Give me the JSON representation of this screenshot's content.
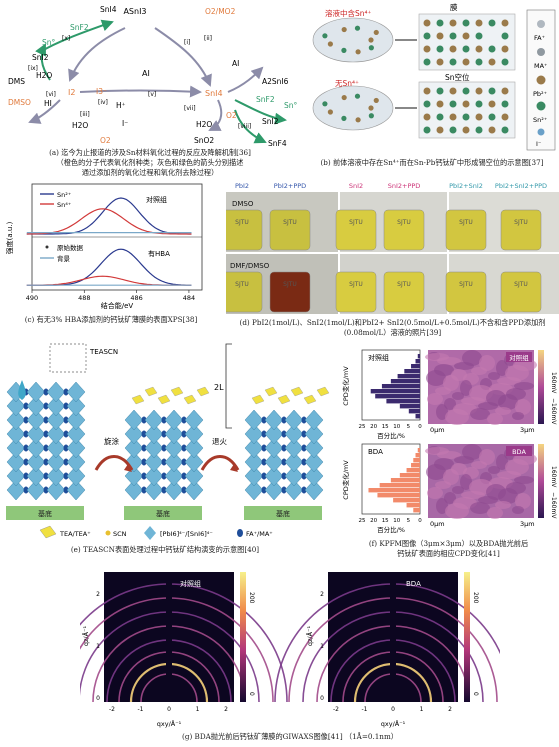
{
  "panel_a": {
    "nodes": {
      "asni3": "ASnI3",
      "sni4_top": "SnI4",
      "snf2_top": "SnF2",
      "sn0_left": "Sn°",
      "sni2_left": "SnI2",
      "dms": "DMS",
      "h2o_left": "H2O",
      "dmso": "DMSO",
      "hi": "HI",
      "i2": "I2",
      "i3": "I3⁻",
      "hplus": "H⁺",
      "iminus": "I⁻",
      "h2o_bottom": "H2O",
      "o2_bottom": "O2",
      "ai": "AI",
      "o2mo2": "O2/MO2",
      "sni4_center": "SnI4",
      "ai_right": "AI",
      "a2sni6": "A2SnI6",
      "snf2_right": "SnF2",
      "sn0_right": "Sn°",
      "sni2_right": "SnI2",
      "sno2": "SnO2",
      "h2o_center": "H2O",
      "o2_right": "O2",
      "snf4": "SnF4"
    },
    "step_labels": [
      "[i]",
      "[ii]",
      "[iii]",
      "[iv]",
      "[v]",
      "[vi]",
      "[vii]",
      "[viii]",
      "[ix]",
      "[x]"
    ],
    "caption_line1": "(a) 迄今为止报道的涉及Sn材料氧化过程的反应及降解机制[36]",
    "caption_line2": "（橙色的分子代表氧化剂种类；灰色和绿色的箭头分别描述",
    "caption_line3": "通过添加剂的氧化过程和氧化剂去除过程）"
  },
  "panel_b": {
    "label_with_sn": "溶液中含Sn⁴⁺",
    "label_without_sn": "无Sn⁴⁺",
    "label_film": "膜",
    "label_vacancy": "Sn空位",
    "legend": [
      "FA⁺",
      "MA⁺",
      "Pb²⁺",
      "Sn²⁺",
      "I⁻"
    ],
    "caption": "(b) 前体溶液中存在Sn⁴⁺而在Sn-Pb钙钛矿中形成锡空位的示意图[37]"
  },
  "panel_c": {
    "legend_top": [
      "Sn²⁺",
      "Sn⁴⁺"
    ],
    "label_control": "对照组",
    "legend_bottom": [
      "原始数据",
      "背景"
    ],
    "label_hba": "有HBA",
    "ylabel": "强度(a.u.)",
    "xlabel": "结合能/eV",
    "xticks": [
      "490",
      "488",
      "486",
      "484"
    ],
    "caption": "(c) 有无3% HBA添加剂的钙钛矿薄膜的表面XPS[38]"
  },
  "panel_d": {
    "columns": [
      "PbI2",
      "PbI2+PPD",
      "SnI2",
      "SnI2+PPD",
      "PbI2+SnI2",
      "PbI2+SnI2+PPD"
    ],
    "column_colors": [
      "#3355aa",
      "#3355aa",
      "#cc3377",
      "#cc3377",
      "#3399aa",
      "#3399aa"
    ],
    "row_labels": [
      "DMSO",
      "DMF/DMSO"
    ],
    "vial_text": "SJTU",
    "caption_line1": "(d) PbI2(1mol/L)、SnI2(1mol/L)和PbI2+ SnI2(0.5mol/L+0.5mol/L)不含和含PPD添加剂",
    "caption_line2": "(0.08mol/L）溶液的照片[39]"
  },
  "panel_e": {
    "label_teascn": "TEASCN",
    "label_2l": "2L",
    "step1": "旋涂",
    "step2": "退火",
    "substrate": "基底",
    "legend": [
      "TEA/TEA⁺",
      "SCN",
      "[PbI6]⁴⁻/[SnI6]⁴⁻",
      "FA⁺/MA⁺"
    ],
    "caption": "(e) TEASCN表面处理过程中钙钛矿结构演变的示意图[40]"
  },
  "panel_f": {
    "label_control": "对照组",
    "label_bda": "BDA",
    "ylabel": "CPD变化/mV",
    "xlabel": "百分比/%",
    "xticks": [
      "25",
      "20",
      "15",
      "10",
      "5",
      "0"
    ],
    "scale_top": "160mV",
    "scale_bottom": "−160mV",
    "axis_start": "0μm",
    "axis_end": "3μm",
    "caption_line1": "(f) KPFM图像（3μm×3μm）以及BDA抛光前后",
    "caption_line2": "钙钛矿表面的相应CPD变化[41]"
  },
  "panel_g": {
    "label_control": "对照组",
    "label_bda": "BDA",
    "ylabel": "qz/Å⁻¹",
    "xlabel": "qxy/Å⁻¹",
    "xticks": [
      "-2",
      "-1",
      "0",
      "1",
      "2"
    ],
    "yticks": [
      "0",
      "1",
      "2"
    ],
    "colorbar_top": "200",
    "colorbar_bottom": "0",
    "caption": "(g) BDA抛光前后钙钛矿薄膜的GIWAXS图像[41] （1Å=0.1nm）"
  },
  "colors": {
    "green_arrow": "#2e9a6a",
    "gray_arrow": "#8c8ca8",
    "oxidant": "#e07a3c",
    "xps_sn2": "#2b3a8f",
    "xps_sn4": "#d23a3a",
    "bar_control": "#3b2a6e",
    "bar_bda": "#f28a6a"
  }
}
